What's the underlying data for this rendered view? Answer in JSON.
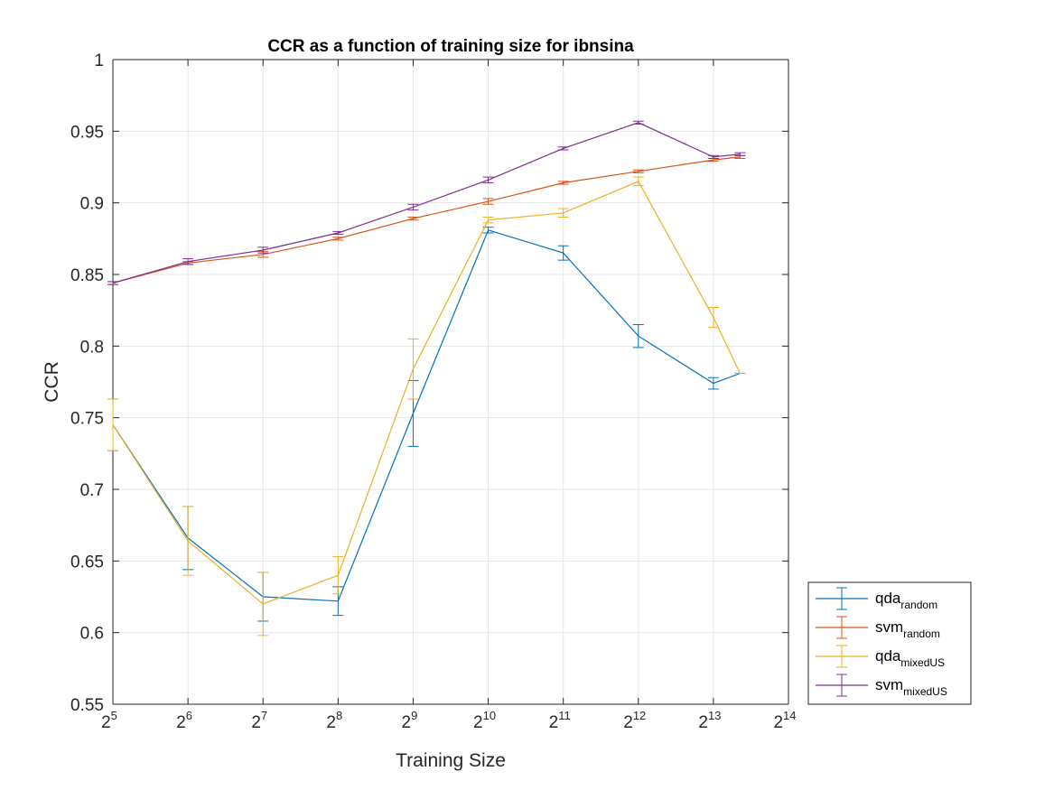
{
  "chart_data": {
    "type": "line",
    "title": "CCR as a function of training size for ibnsina",
    "xlabel": "Training Size",
    "ylabel": "CCR",
    "xscale": "log2",
    "x_tick_exponents": [
      5,
      6,
      7,
      8,
      9,
      10,
      11,
      12,
      13,
      14
    ],
    "x_tick_base": "2",
    "xlim": [
      32,
      16384
    ],
    "ylim": [
      0.55,
      1.0
    ],
    "y_ticks": [
      0.55,
      0.6,
      0.65,
      0.7,
      0.75,
      0.8,
      0.85,
      0.9,
      0.95,
      1
    ],
    "y_tick_labels": [
      "0.55",
      "0.6",
      "0.65",
      "0.7",
      "0.75",
      "0.8",
      "0.85",
      "0.9",
      "0.95",
      "1"
    ],
    "grid": true,
    "legend_position": "outside-bottom-right",
    "x": [
      32,
      64,
      128,
      256,
      512,
      1024,
      2048,
      4096,
      8192,
      10475
    ],
    "series": [
      {
        "name": "qda",
        "subscript": "random",
        "color": "#0072BD",
        "values": [
          0.745,
          0.666,
          0.625,
          0.622,
          0.753,
          0.881,
          0.865,
          0.807,
          0.774,
          0.781
        ],
        "errors": [
          0.018,
          0.022,
          0.017,
          0.01,
          0.023,
          0.002,
          0.005,
          0.008,
          0.004,
          0.0
        ]
      },
      {
        "name": "svm",
        "subscript": "random",
        "color": "#D95319",
        "values": [
          0.844,
          0.858,
          0.864,
          0.875,
          0.889,
          0.901,
          0.914,
          0.922,
          0.93,
          0.932
        ],
        "errors": [
          0.001,
          0.001,
          0.002,
          0.001,
          0.001,
          0.002,
          0.001,
          0.001,
          0.001,
          0.001
        ]
      },
      {
        "name": "qda",
        "subscript": "mixedUS",
        "color": "#EDB120",
        "values": [
          0.745,
          0.664,
          0.62,
          0.64,
          0.784,
          0.888,
          0.893,
          0.915,
          0.82,
          0.781
        ],
        "errors": [
          0.018,
          0.024,
          0.022,
          0.013,
          0.021,
          0.002,
          0.003,
          0.003,
          0.007,
          0.0
        ]
      },
      {
        "name": "svm",
        "subscript": "mixedUS",
        "color": "#7E2F8E",
        "values": [
          0.844,
          0.859,
          0.867,
          0.879,
          0.897,
          0.916,
          0.938,
          0.956,
          0.932,
          0.934
        ],
        "errors": [
          0.001,
          0.002,
          0.002,
          0.001,
          0.002,
          0.002,
          0.001,
          0.001,
          0.001,
          0.001
        ]
      }
    ]
  }
}
